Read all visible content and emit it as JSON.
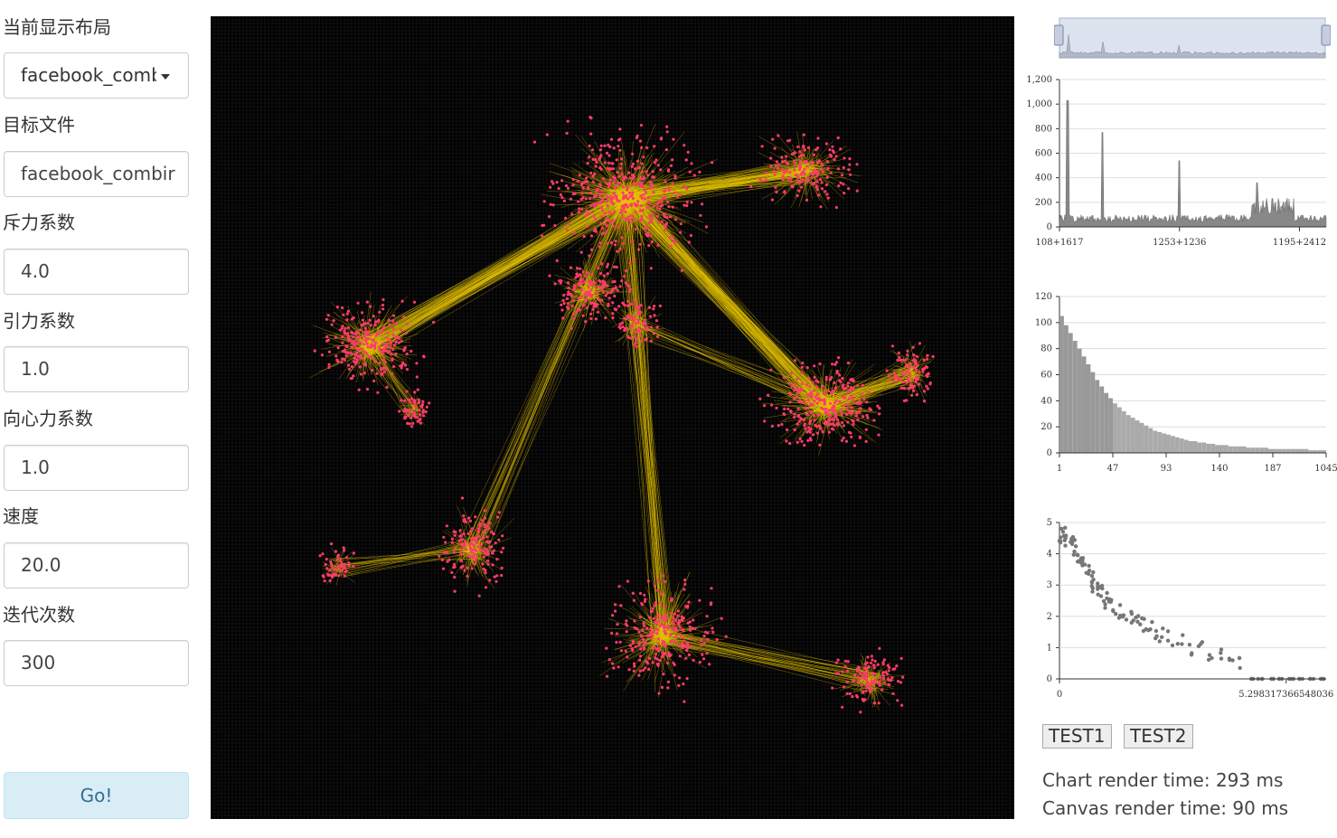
{
  "sidebar": {
    "layout_label": "当前显示布局",
    "layout_selected": "facebook_comb",
    "target_label": "目标文件",
    "target_value": "facebook_combir",
    "repulsion_label": "斥力系数",
    "repulsion_value": "4.0",
    "attraction_label": "引力系数",
    "attraction_value": "1.0",
    "gravity_label": "向心力系数",
    "gravity_value": "1.0",
    "speed_label": "速度",
    "speed_value": "20.0",
    "iterations_label": "迭代次数",
    "iterations_value": "300",
    "go_label": "Go!"
  },
  "canvas": {
    "background": "#000000",
    "grid_color": "#1c1c1c",
    "edge_color": "#e6c200",
    "node_color": "#ff3b6b"
  },
  "buttons": {
    "test1": "TEST1",
    "test2": "TEST2"
  },
  "stats": {
    "chart_render": "Chart render time: 293 ms",
    "canvas_render": "Canvas render time: 90 ms"
  },
  "chart_data": [
    {
      "type": "area",
      "ylim": [
        0,
        1200
      ],
      "yticks": [
        "0",
        "200",
        "400",
        "600",
        "800",
        "1,000",
        "1,200"
      ],
      "xticks": [
        "108+1617",
        "1253+1236",
        "1195+2412"
      ],
      "peaks": [
        {
          "x": 0.03,
          "y": 1030
        },
        {
          "x": 0.16,
          "y": 770
        },
        {
          "x": 0.45,
          "y": 540
        },
        {
          "x": 0.74,
          "y": 360
        }
      ]
    },
    {
      "type": "bar",
      "ylim": [
        0,
        120
      ],
      "yticks": [
        "0",
        "20",
        "40",
        "60",
        "80",
        "100",
        "120"
      ],
      "xticks": [
        "1",
        "47",
        "93",
        "140",
        "187",
        "1045"
      ],
      "values": [
        105,
        98,
        92,
        86,
        80,
        74,
        68,
        62,
        56,
        51,
        46,
        42,
        38,
        35,
        32,
        29,
        27,
        25,
        23,
        21,
        19,
        17,
        16,
        15,
        14,
        13,
        12,
        11,
        10,
        9,
        9,
        8,
        8,
        7,
        7,
        6,
        6,
        6,
        5,
        5,
        5,
        5,
        4,
        4,
        4,
        4,
        4,
        3,
        3,
        3,
        3,
        3,
        3,
        3,
        3,
        3,
        2,
        2,
        2,
        2
      ]
    },
    {
      "type": "scatter",
      "ylim": [
        0,
        5
      ],
      "yticks": [
        "0",
        "1",
        "2",
        "3",
        "4",
        "5"
      ],
      "xticks": [
        "0",
        "5.298317366548036"
      ],
      "x": [
        0.0,
        0.05,
        0.1,
        0.15,
        0.2,
        0.25,
        0.3,
        0.35,
        0.4,
        0.45,
        0.5,
        0.55,
        0.6,
        0.65,
        0.7,
        0.75,
        0.8,
        0.85,
        0.9,
        0.95,
        1.0,
        1.1,
        1.2,
        1.3,
        1.4,
        1.5,
        1.6,
        1.7,
        1.8,
        1.9,
        2.0,
        2.2,
        2.4,
        2.6,
        2.8,
        3.0,
        3.2,
        3.4,
        3.6,
        3.8,
        4.0,
        4.2,
        4.4,
        4.6,
        4.8,
        5.0,
        5.2
      ],
      "values": [
        4.6,
        4.5,
        4.6,
        4.5,
        4.4,
        4.3,
        4.2,
        4.0,
        3.9,
        3.7,
        3.6,
        3.4,
        3.3,
        3.2,
        3.0,
        2.9,
        2.8,
        2.7,
        2.6,
        2.5,
        2.4,
        2.3,
        2.2,
        2.1,
        2.0,
        1.9,
        1.8,
        1.7,
        1.6,
        1.5,
        1.4,
        1.3,
        1.2,
        1.0,
        1.0,
        0.8,
        0.7,
        0.7,
        0.6,
        0.0,
        0.0,
        0.0,
        0.0,
        0.0,
        0.0,
        0.0,
        0.0
      ]
    }
  ]
}
